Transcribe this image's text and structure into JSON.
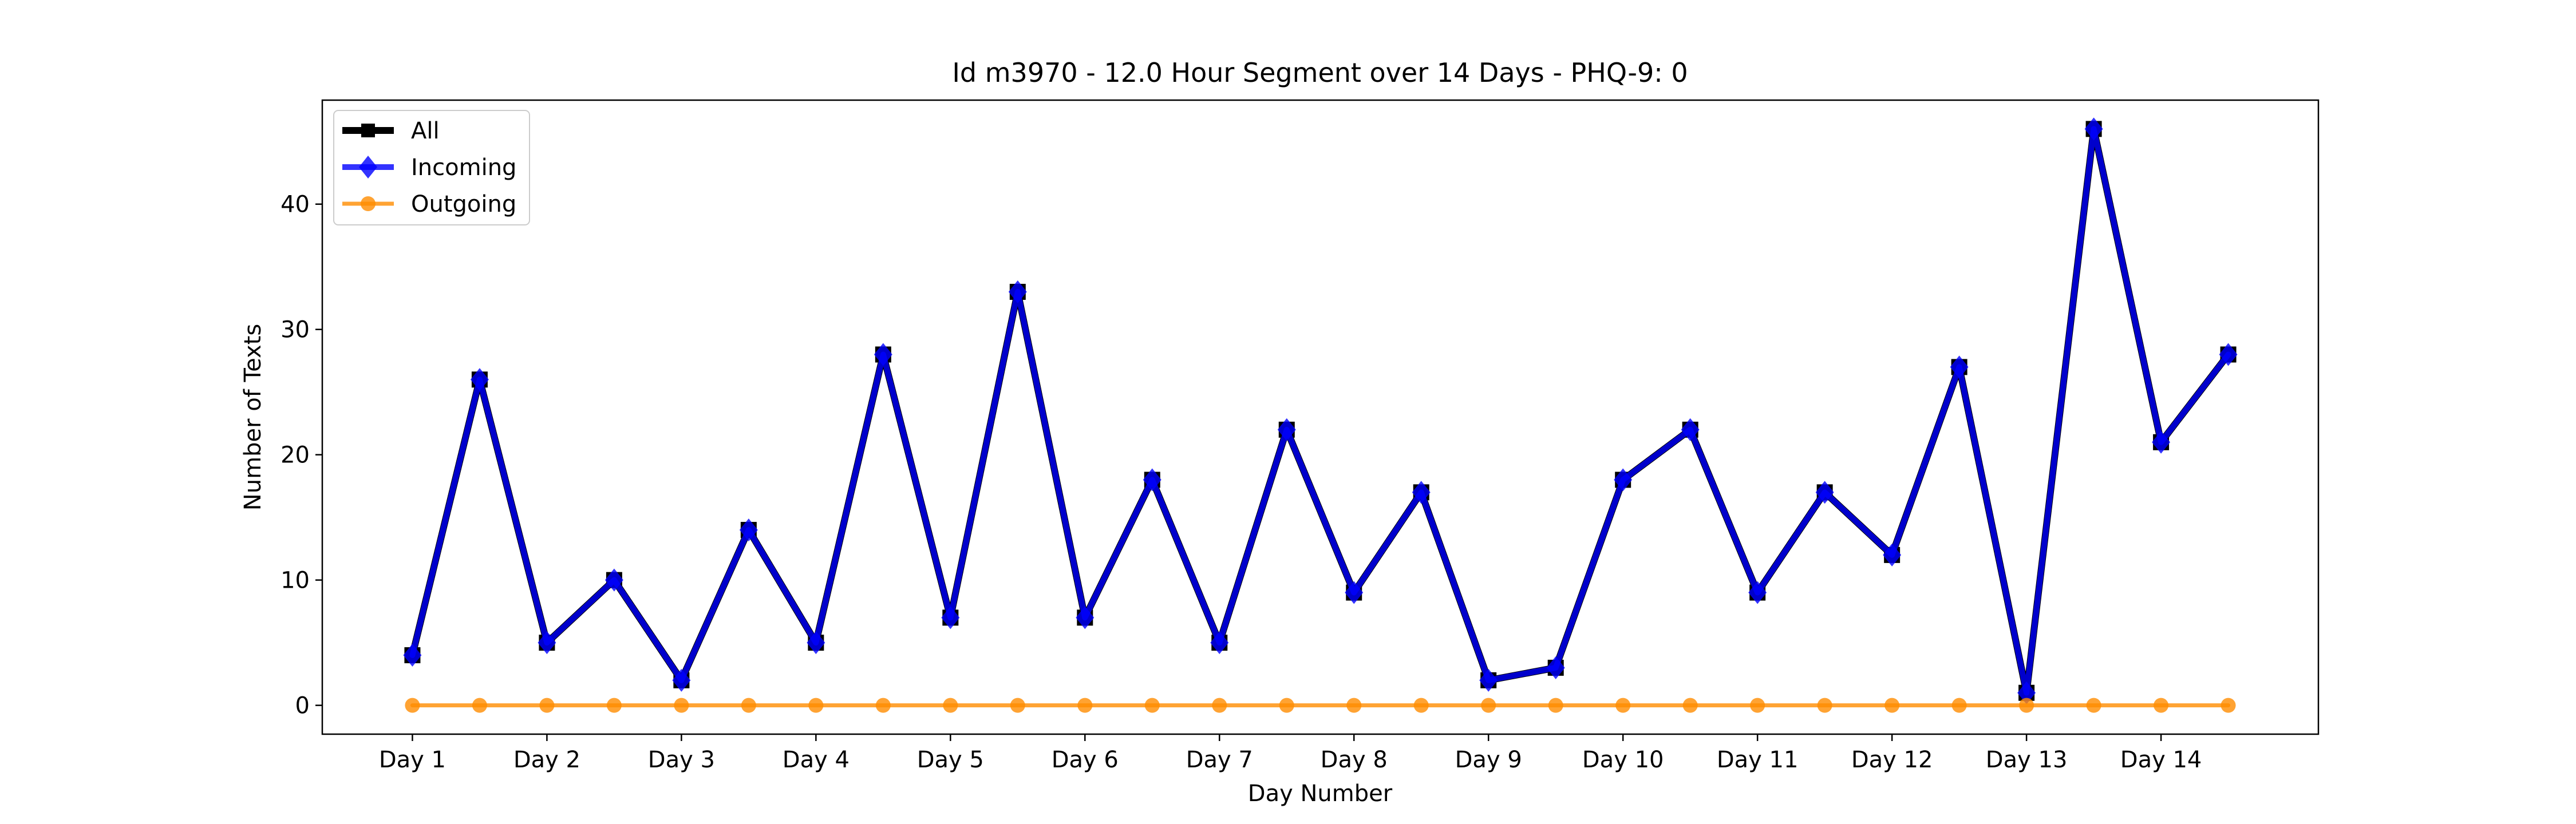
{
  "chart_data": {
    "type": "line",
    "title": "Id m3970 - 12.0 Hour Segment over 14 Days - PHQ-9: 0",
    "xlabel": "Day Number",
    "ylabel": "Number of Texts",
    "x_tick_labels": [
      "Day 1",
      "Day 2",
      "Day 3",
      "Day 4",
      "Day 5",
      "Day 6",
      "Day 7",
      "Day 8",
      "Day 9",
      "Day 10",
      "Day 11",
      "Day 12",
      "Day 13",
      "Day 14"
    ],
    "y_ticks": [
      0,
      10,
      20,
      30,
      40
    ],
    "ylim": [
      -2.3,
      48.3
    ],
    "xlim": [
      0.33,
      15.17
    ],
    "x": [
      1,
      1.5,
      2,
      2.5,
      3,
      3.5,
      4,
      4.5,
      5,
      5.5,
      6,
      6.5,
      7,
      7.5,
      8,
      8.5,
      9,
      9.5,
      10,
      10.5,
      11,
      11.5,
      12,
      12.5,
      13,
      13.5,
      14,
      14.5
    ],
    "legend_position": "top-left",
    "grid": false,
    "series": [
      {
        "name": "All",
        "color": "#000000",
        "marker": "square",
        "values": [
          4,
          26,
          5,
          10,
          2,
          14,
          5,
          28,
          7,
          33,
          7,
          18,
          5,
          22,
          9,
          17,
          2,
          3,
          18,
          22,
          9,
          17,
          12,
          27,
          1,
          46,
          21,
          28
        ]
      },
      {
        "name": "Incoming",
        "color": "#0000ff",
        "marker": "diamond",
        "values": [
          4,
          26,
          5,
          10,
          2,
          14,
          5,
          28,
          7,
          33,
          7,
          18,
          5,
          22,
          9,
          17,
          2,
          3,
          18,
          22,
          9,
          17,
          12,
          27,
          1,
          46,
          21,
          28
        ]
      },
      {
        "name": "Outgoing",
        "color": "#ff8c00",
        "marker": "circle",
        "values": [
          0,
          0,
          0,
          0,
          0,
          0,
          0,
          0,
          0,
          0,
          0,
          0,
          0,
          0,
          0,
          0,
          0,
          0,
          0,
          0,
          0,
          0,
          0,
          0,
          0,
          0,
          0,
          0
        ]
      }
    ]
  }
}
